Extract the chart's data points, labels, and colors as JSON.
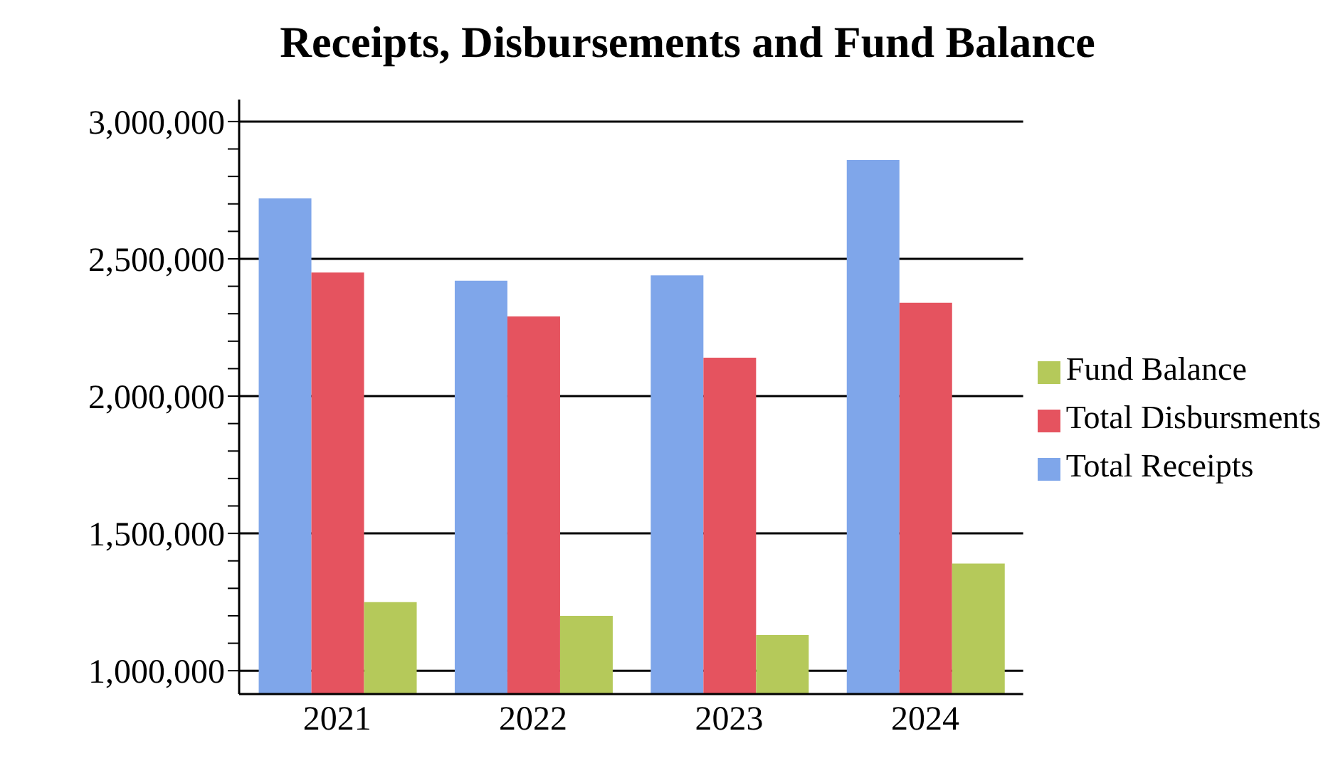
{
  "chart_data": {
    "type": "bar",
    "title": "Receipts, Disbursements and Fund Balance",
    "categories": [
      "2021",
      "2022",
      "2023",
      "2024"
    ],
    "series": [
      {
        "name": "Total Receipts",
        "color": "#7fa6ea",
        "values": [
          2720000,
          2420000,
          2440000,
          2860000
        ]
      },
      {
        "name": "Total Disbursments",
        "color": "#e5535f",
        "values": [
          2450000,
          2290000,
          2140000,
          2340000
        ]
      },
      {
        "name": "Fund Balance",
        "color": "#b5c95a",
        "values": [
          1250000,
          1200000,
          1130000,
          1390000
        ]
      }
    ],
    "ylim": [
      915000,
      3080000
    ],
    "yticks": [
      {
        "value": 1000000,
        "label": "1,000,000"
      },
      {
        "value": 1100000,
        "label": null
      },
      {
        "value": 1200000,
        "label": null
      },
      {
        "value": 1300000,
        "label": null
      },
      {
        "value": 1400000,
        "label": null
      },
      {
        "value": 1500000,
        "label": "1,500,000"
      },
      {
        "value": 1600000,
        "label": null
      },
      {
        "value": 1700000,
        "label": null
      },
      {
        "value": 1800000,
        "label": null
      },
      {
        "value": 1900000,
        "label": null
      },
      {
        "value": 2000000,
        "label": "2,000,000"
      },
      {
        "value": 2100000,
        "label": null
      },
      {
        "value": 2200000,
        "label": null
      },
      {
        "value": 2300000,
        "label": null
      },
      {
        "value": 2400000,
        "label": null
      },
      {
        "value": 2500000,
        "label": "2,500,000"
      },
      {
        "value": 2600000,
        "label": null
      },
      {
        "value": 2700000,
        "label": null
      },
      {
        "value": 2800000,
        "label": null
      },
      {
        "value": 2900000,
        "label": null
      },
      {
        "value": 3000000,
        "label": "3,000,000"
      }
    ],
    "grid": "y",
    "legend": "right"
  }
}
